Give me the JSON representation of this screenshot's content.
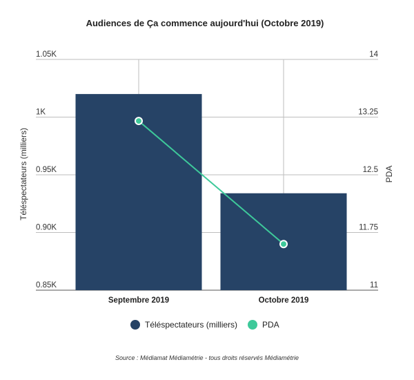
{
  "chart_data": {
    "type": "bar",
    "title": "Audiences de Ça commence aujourd'hui (Octobre 2019)",
    "categories": [
      "Septembre 2019",
      "Octobre 2019"
    ],
    "ylabel": "Téléspectateurs (milliers)",
    "y2label": "PDA",
    "ylim": [
      0.85,
      1.05
    ],
    "y2lim": [
      11,
      14
    ],
    "yticks": [
      "0.85K",
      "0.90K",
      "0.95K",
      "1K",
      "1.05K"
    ],
    "y2ticks": [
      "11",
      "11.75",
      "12.5",
      "13.25",
      "14"
    ],
    "series": [
      {
        "name": "Téléspectateurs (milliers)",
        "kind": "bar",
        "axis": "left",
        "values": [
          1.02,
          0.934
        ],
        "color": "#264366"
      },
      {
        "name": "PDA",
        "kind": "line",
        "axis": "right",
        "values": [
          13.2,
          11.6
        ],
        "color": "#3ec99a"
      }
    ],
    "legend_position": "bottom",
    "grid": true
  },
  "source": "Source : Médiamat Médiamétrie - tous droits réservés Médiamétrie"
}
